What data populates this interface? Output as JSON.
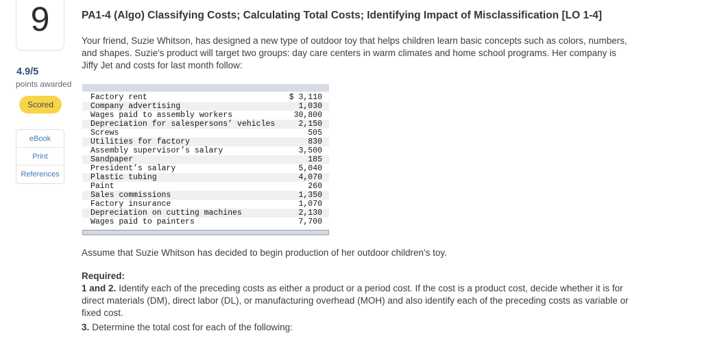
{
  "sidebar": {
    "question_number": "9",
    "score": "4.9/5",
    "score_label": "points awarded",
    "status_badge": "Scored",
    "actions": [
      "eBook",
      "Print",
      "References"
    ]
  },
  "main": {
    "title": "PA1-4 (Algo) Classifying Costs; Calculating Total Costs; Identifying Impact of Misclassification [LO 1-4]",
    "intro_lines": [
      "Your friend, Suzie Whitson, has designed a new type of outdoor toy that helps children learn basic concepts such as colors, numbers,",
      "and shapes. Suzie's product will target two groups: day care centers in warm climates and home school programs. Her company is",
      "Jiffy Jet and costs for last month follow:"
    ],
    "assume_text": "Assume that Suzie Whitson has decided to begin production of her outdoor children's toy.",
    "required": {
      "heading": "Required:",
      "req_1_2": {
        "prefix": "1 and 2.",
        "lines": [
          "Identify each of the preceding costs as either a product or a period cost. If the cost is a product cost, decide whether it is for",
          "direct materials (DM), direct labor (DL), or manufacturing overhead (MOH) and also identify each of the preceding costs as variable or",
          "fixed cost."
        ]
      },
      "req_3": {
        "prefix": "3.",
        "text": "Determine the total cost for each of the following:"
      }
    }
  },
  "cost_table": {
    "rows": [
      {
        "item": "Factory rent",
        "amount": "$ 3,110"
      },
      {
        "item": "Company advertising",
        "amount": "1,030"
      },
      {
        "item": "Wages paid to assembly workers",
        "amount": "30,800"
      },
      {
        "item": "Depreciation for salespersons’ vehicles",
        "amount": "2,150"
      },
      {
        "item": "Screws",
        "amount": "505"
      },
      {
        "item": "Utilities for factory",
        "amount": "830"
      },
      {
        "item": "Assembly supervisor’s salary",
        "amount": "3,500"
      },
      {
        "item": "Sandpaper",
        "amount": "185"
      },
      {
        "item": "President’s salary",
        "amount": "5,040"
      },
      {
        "item": "Plastic tubing",
        "amount": "4,070"
      },
      {
        "item": "Paint",
        "amount": "260"
      },
      {
        "item": "Sales commissions",
        "amount": "1,350"
      },
      {
        "item": "Factory insurance",
        "amount": "1,070"
      },
      {
        "item": "Depreciation on cutting machines",
        "amount": "2,130"
      },
      {
        "item": "Wages paid to painters",
        "amount": "7,700"
      }
    ]
  },
  "colors": {
    "badge_yellow": "#f7d54a",
    "link_blue": "#4377b5",
    "score_blue": "#2e4f78",
    "table_header_bg": "#d7dce4",
    "row_stripe": "#f0f0f0"
  }
}
